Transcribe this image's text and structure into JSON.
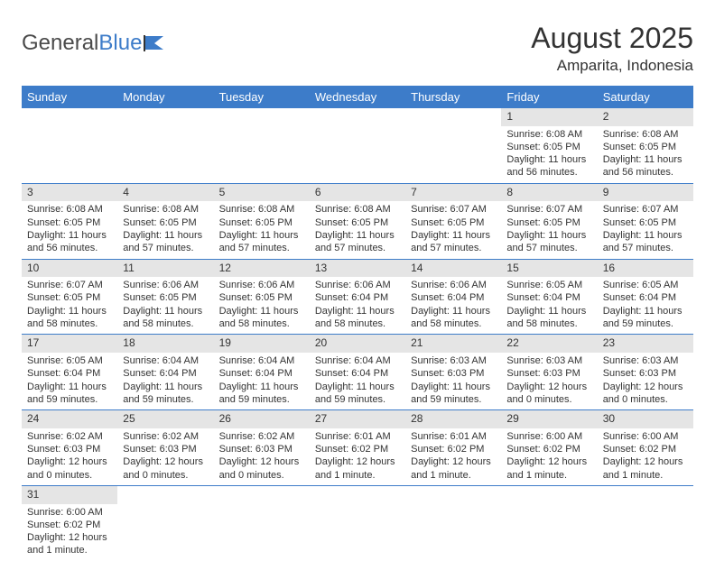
{
  "logo": {
    "text1": "General",
    "text2": "Blue"
  },
  "header": {
    "month_title": "August 2025",
    "location": "Amparita, Indonesia"
  },
  "colors": {
    "header_bg": "#3d7cc9",
    "daynum_bg": "#e5e5e5",
    "border": "#3d7cc9"
  },
  "daynames": [
    "Sunday",
    "Monday",
    "Tuesday",
    "Wednesday",
    "Thursday",
    "Friday",
    "Saturday"
  ],
  "weeks": [
    [
      null,
      null,
      null,
      null,
      null,
      {
        "n": "1",
        "sr": "Sunrise: 6:08 AM",
        "ss": "Sunset: 6:05 PM",
        "dl": "Daylight: 11 hours and 56 minutes."
      },
      {
        "n": "2",
        "sr": "Sunrise: 6:08 AM",
        "ss": "Sunset: 6:05 PM",
        "dl": "Daylight: 11 hours and 56 minutes."
      }
    ],
    [
      {
        "n": "3",
        "sr": "Sunrise: 6:08 AM",
        "ss": "Sunset: 6:05 PM",
        "dl": "Daylight: 11 hours and 56 minutes."
      },
      {
        "n": "4",
        "sr": "Sunrise: 6:08 AM",
        "ss": "Sunset: 6:05 PM",
        "dl": "Daylight: 11 hours and 57 minutes."
      },
      {
        "n": "5",
        "sr": "Sunrise: 6:08 AM",
        "ss": "Sunset: 6:05 PM",
        "dl": "Daylight: 11 hours and 57 minutes."
      },
      {
        "n": "6",
        "sr": "Sunrise: 6:08 AM",
        "ss": "Sunset: 6:05 PM",
        "dl": "Daylight: 11 hours and 57 minutes."
      },
      {
        "n": "7",
        "sr": "Sunrise: 6:07 AM",
        "ss": "Sunset: 6:05 PM",
        "dl": "Daylight: 11 hours and 57 minutes."
      },
      {
        "n": "8",
        "sr": "Sunrise: 6:07 AM",
        "ss": "Sunset: 6:05 PM",
        "dl": "Daylight: 11 hours and 57 minutes."
      },
      {
        "n": "9",
        "sr": "Sunrise: 6:07 AM",
        "ss": "Sunset: 6:05 PM",
        "dl": "Daylight: 11 hours and 57 minutes."
      }
    ],
    [
      {
        "n": "10",
        "sr": "Sunrise: 6:07 AM",
        "ss": "Sunset: 6:05 PM",
        "dl": "Daylight: 11 hours and 58 minutes."
      },
      {
        "n": "11",
        "sr": "Sunrise: 6:06 AM",
        "ss": "Sunset: 6:05 PM",
        "dl": "Daylight: 11 hours and 58 minutes."
      },
      {
        "n": "12",
        "sr": "Sunrise: 6:06 AM",
        "ss": "Sunset: 6:05 PM",
        "dl": "Daylight: 11 hours and 58 minutes."
      },
      {
        "n": "13",
        "sr": "Sunrise: 6:06 AM",
        "ss": "Sunset: 6:04 PM",
        "dl": "Daylight: 11 hours and 58 minutes."
      },
      {
        "n": "14",
        "sr": "Sunrise: 6:06 AM",
        "ss": "Sunset: 6:04 PM",
        "dl": "Daylight: 11 hours and 58 minutes."
      },
      {
        "n": "15",
        "sr": "Sunrise: 6:05 AM",
        "ss": "Sunset: 6:04 PM",
        "dl": "Daylight: 11 hours and 58 minutes."
      },
      {
        "n": "16",
        "sr": "Sunrise: 6:05 AM",
        "ss": "Sunset: 6:04 PM",
        "dl": "Daylight: 11 hours and 59 minutes."
      }
    ],
    [
      {
        "n": "17",
        "sr": "Sunrise: 6:05 AM",
        "ss": "Sunset: 6:04 PM",
        "dl": "Daylight: 11 hours and 59 minutes."
      },
      {
        "n": "18",
        "sr": "Sunrise: 6:04 AM",
        "ss": "Sunset: 6:04 PM",
        "dl": "Daylight: 11 hours and 59 minutes."
      },
      {
        "n": "19",
        "sr": "Sunrise: 6:04 AM",
        "ss": "Sunset: 6:04 PM",
        "dl": "Daylight: 11 hours and 59 minutes."
      },
      {
        "n": "20",
        "sr": "Sunrise: 6:04 AM",
        "ss": "Sunset: 6:04 PM",
        "dl": "Daylight: 11 hours and 59 minutes."
      },
      {
        "n": "21",
        "sr": "Sunrise: 6:03 AM",
        "ss": "Sunset: 6:03 PM",
        "dl": "Daylight: 11 hours and 59 minutes."
      },
      {
        "n": "22",
        "sr": "Sunrise: 6:03 AM",
        "ss": "Sunset: 6:03 PM",
        "dl": "Daylight: 12 hours and 0 minutes."
      },
      {
        "n": "23",
        "sr": "Sunrise: 6:03 AM",
        "ss": "Sunset: 6:03 PM",
        "dl": "Daylight: 12 hours and 0 minutes."
      }
    ],
    [
      {
        "n": "24",
        "sr": "Sunrise: 6:02 AM",
        "ss": "Sunset: 6:03 PM",
        "dl": "Daylight: 12 hours and 0 minutes."
      },
      {
        "n": "25",
        "sr": "Sunrise: 6:02 AM",
        "ss": "Sunset: 6:03 PM",
        "dl": "Daylight: 12 hours and 0 minutes."
      },
      {
        "n": "26",
        "sr": "Sunrise: 6:02 AM",
        "ss": "Sunset: 6:03 PM",
        "dl": "Daylight: 12 hours and 0 minutes."
      },
      {
        "n": "27",
        "sr": "Sunrise: 6:01 AM",
        "ss": "Sunset: 6:02 PM",
        "dl": "Daylight: 12 hours and 1 minute."
      },
      {
        "n": "28",
        "sr": "Sunrise: 6:01 AM",
        "ss": "Sunset: 6:02 PM",
        "dl": "Daylight: 12 hours and 1 minute."
      },
      {
        "n": "29",
        "sr": "Sunrise: 6:00 AM",
        "ss": "Sunset: 6:02 PM",
        "dl": "Daylight: 12 hours and 1 minute."
      },
      {
        "n": "30",
        "sr": "Sunrise: 6:00 AM",
        "ss": "Sunset: 6:02 PM",
        "dl": "Daylight: 12 hours and 1 minute."
      }
    ],
    [
      {
        "n": "31",
        "sr": "Sunrise: 6:00 AM",
        "ss": "Sunset: 6:02 PM",
        "dl": "Daylight: 12 hours and 1 minute."
      },
      null,
      null,
      null,
      null,
      null,
      null
    ]
  ]
}
